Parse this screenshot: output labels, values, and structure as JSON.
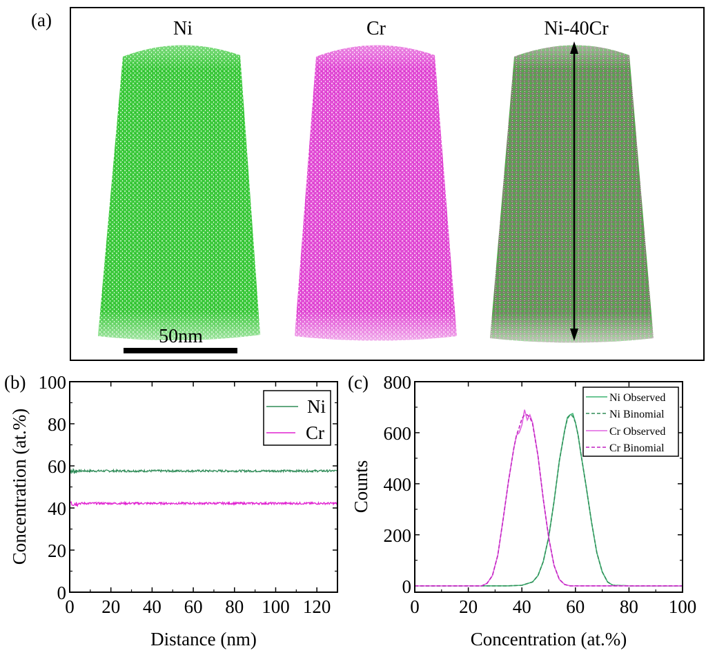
{
  "figure": {
    "panel_a": {
      "label": "(a)",
      "titles": [
        "Ni",
        "Cr",
        "Ni-40Cr"
      ],
      "scale_bar_label": "50nm",
      "colors": {
        "ni": "#22c022",
        "cr": "#e040d0",
        "mixed_dark": "#6e8a5a"
      }
    },
    "panel_b": {
      "label": "(b)"
    },
    "panel_c": {
      "label": "(c)"
    }
  },
  "chart_data": [
    {
      "type": "line",
      "panel": "(b)",
      "title": "",
      "xlabel": "Distance (nm)",
      "ylabel": "Concentration (at.%)",
      "xlim": [
        0,
        130
      ],
      "ylim": [
        0,
        100
      ],
      "xticks": [
        0,
        20,
        40,
        60,
        80,
        100,
        120
      ],
      "yticks": [
        0,
        20,
        40,
        60,
        80,
        100
      ],
      "grid": false,
      "legend_position": "top-right",
      "series": [
        {
          "name": "Ni",
          "color": "#2e8b57",
          "style": "solid",
          "mean": 57.6,
          "noise": 0.5,
          "start_spike": 59
        },
        {
          "name": "Cr",
          "color": "#e020d0",
          "style": "solid",
          "mean": 42.2,
          "noise": 0.5,
          "start_spike": 44
        }
      ]
    },
    {
      "type": "line",
      "panel": "(c)",
      "title": "",
      "xlabel": "Concentration (at.%)",
      "ylabel": "Counts",
      "xlim": [
        0,
        100
      ],
      "ylim": [
        -25,
        800
      ],
      "xticks": [
        0,
        20,
        40,
        60,
        80,
        100
      ],
      "yticks": [
        0,
        200,
        400,
        600,
        800
      ],
      "grid": false,
      "legend_position": "top-right",
      "series": [
        {
          "name": "Ni Observed",
          "color": "#3cb371",
          "style": "solid",
          "x": [
            0,
            20,
            25,
            30,
            35,
            40,
            44,
            46,
            48,
            50,
            52,
            54,
            56,
            57,
            58,
            59,
            60,
            61,
            62,
            64,
            66,
            68,
            70,
            72,
            74,
            80,
            100
          ],
          "y": [
            0,
            0,
            0,
            0,
            0,
            2,
            15,
            40,
            95,
            190,
            330,
            490,
            610,
            660,
            670,
            675,
            640,
            590,
            520,
            390,
            250,
            130,
            55,
            15,
            2,
            0,
            0
          ]
        },
        {
          "name": "Ni Binomial",
          "color": "#2e8b57",
          "style": "dashed",
          "x": [
            0,
            20,
            25,
            30,
            35,
            40,
            44,
            46,
            48,
            50,
            52,
            54,
            56,
            57,
            58,
            59,
            60,
            61,
            62,
            64,
            66,
            68,
            70,
            72,
            74,
            80,
            100
          ],
          "y": [
            0,
            0,
            0,
            0,
            0,
            2,
            15,
            40,
            95,
            190,
            330,
            490,
            610,
            655,
            670,
            665,
            640,
            590,
            520,
            390,
            250,
            130,
            55,
            15,
            2,
            0,
            0
          ]
        },
        {
          "name": "Cr Observed",
          "color": "#e060e0",
          "style": "solid",
          "x": [
            0,
            20,
            25,
            27,
            29,
            31,
            33,
            35,
            37,
            38,
            39,
            40,
            41,
            42,
            43,
            44,
            46,
            48,
            50,
            52,
            54,
            56,
            58,
            60,
            65,
            80,
            100
          ],
          "y": [
            0,
            0,
            0,
            10,
            40,
            120,
            260,
            410,
            540,
            590,
            600,
            630,
            690,
            650,
            670,
            640,
            510,
            340,
            190,
            80,
            25,
            5,
            0,
            0,
            0,
            0,
            0
          ]
        },
        {
          "name": "Cr Binomial",
          "color": "#c020c0",
          "style": "dashed",
          "x": [
            0,
            20,
            25,
            27,
            29,
            31,
            33,
            35,
            37,
            38,
            39,
            40,
            41,
            42,
            43,
            44,
            46,
            48,
            50,
            52,
            54,
            56,
            58,
            60,
            65,
            80,
            100
          ],
          "y": [
            0,
            0,
            0,
            10,
            40,
            120,
            260,
            410,
            540,
            590,
            620,
            655,
            670,
            670,
            660,
            635,
            510,
            340,
            190,
            80,
            25,
            5,
            0,
            0,
            0,
            0,
            0
          ]
        }
      ]
    }
  ]
}
